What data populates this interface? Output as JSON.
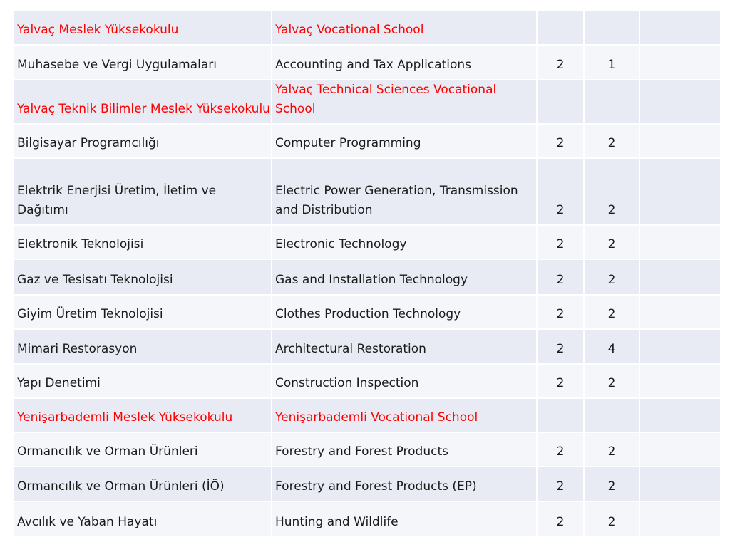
{
  "rows": [
    {
      "kind": "faculty",
      "tr": "Yalvaç Meslek Yüksekokulu",
      "en": "Yalvaç Vocational School",
      "a": "",
      "b": ""
    },
    {
      "kind": "program",
      "tr": "Muhasebe ve Vergi Uygulamaları",
      "en": "Accounting and Tax Applications",
      "a": "2",
      "b": "1"
    },
    {
      "kind": "faculty",
      "tr": "Yalvaç Teknik Bilimler Meslek Yüksekokulu",
      "en": "Yalvaç Technical Sciences Vocational School",
      "a": "",
      "b": ""
    },
    {
      "kind": "program",
      "tr": "Bilgisayar Programcılığı",
      "en": "Computer Programming",
      "a": "2",
      "b": "2"
    },
    {
      "kind": "program",
      "tr": "Elektrik Enerjisi Üretim, İletim ve Dağıtımı",
      "en": "Electric Power Generation, Transmission and Distribution",
      "a": "2",
      "b": "2"
    },
    {
      "kind": "program",
      "tr": "Elektronik Teknolojisi",
      "en": "Electronic Technology",
      "a": "2",
      "b": "2"
    },
    {
      "kind": "program",
      "tr": "Gaz ve Tesisatı Teknolojisi",
      "en": "Gas and Installation Technology",
      "a": "2",
      "b": "2"
    },
    {
      "kind": "program",
      "tr": "Giyim Üretim Teknolojisi",
      "en": "Clothes Production Technology",
      "a": "2",
      "b": "2"
    },
    {
      "kind": "program",
      "tr": "Mimari Restorasyon",
      "en": "Architectural Restoration",
      "a": "2",
      "b": "4"
    },
    {
      "kind": "program",
      "tr": "Yapı Denetimi",
      "en": "Construction Inspection",
      "a": "2",
      "b": "2"
    },
    {
      "kind": "faculty",
      "tr": "Yenişarbademli Meslek Yüksekokulu",
      "en": "Yenişarbademli Vocational School",
      "a": "",
      "b": ""
    },
    {
      "kind": "program",
      "tr": "Ormancılık ve Orman Ürünleri",
      "en": "Forestry and Forest Products",
      "a": "2",
      "b": "2"
    },
    {
      "kind": "program",
      "tr": "Ormancılık ve Orman Ürünleri (İÖ)",
      "en": "Forestry and Forest Products (EP)",
      "a": "2",
      "b": "2"
    },
    {
      "kind": "program",
      "tr": "Avcılık ve Yaban Hayatı",
      "en": "Hunting and Wildlife",
      "a": "2",
      "b": "2"
    }
  ],
  "colors": {
    "faculty_text": "#ff0000",
    "band": "#e8ebf4",
    "light": "#f5f6fa"
  }
}
